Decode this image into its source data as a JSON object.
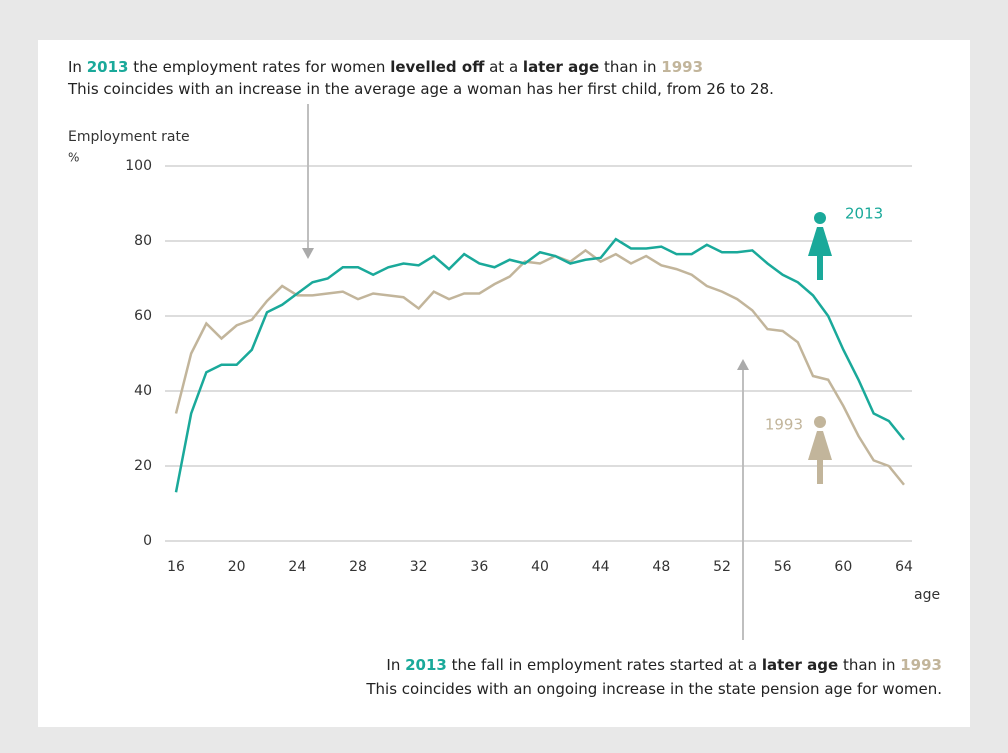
{
  "chart_data": {
    "type": "line",
    "annotations": [
      [
        {
          "text": "In "
        },
        {
          "text": "2013",
          "style": "series0"
        },
        {
          "text": " the employment rates for women "
        },
        {
          "text": "levelled off",
          "style": "bold"
        },
        {
          "text": " at a "
        },
        {
          "text": "later age",
          "style": "bold"
        },
        {
          "text": " than in "
        },
        {
          "text": "1993",
          "style": "series1"
        }
      ],
      [
        {
          "text": "This coincides with an increase in the average age a woman has her first child, from 26 to 28."
        }
      ],
      [
        {
          "text": "In "
        },
        {
          "text": "2013",
          "style": "series0"
        },
        {
          "text": " the fall in employment rates started at a "
        },
        {
          "text": "later age",
          "style": "bold"
        },
        {
          "text": " than in "
        },
        {
          "text": "1993",
          "style": "series1"
        }
      ],
      [
        {
          "text": "This coincides with an ongoing increase in the state pension age for women."
        }
      ]
    ],
    "y_label": "Employment rate",
    "y_unit": "%",
    "x_label": "age",
    "x": [
      16,
      17,
      18,
      19,
      20,
      21,
      22,
      23,
      24,
      25,
      26,
      27,
      28,
      29,
      30,
      31,
      32,
      33,
      34,
      35,
      36,
      37,
      38,
      39,
      40,
      41,
      42,
      43,
      44,
      45,
      46,
      47,
      48,
      49,
      50,
      51,
      52,
      53,
      54,
      55,
      56,
      57,
      58,
      59,
      60,
      61,
      62,
      63,
      64
    ],
    "series": [
      {
        "name": "2013",
        "color": "#1aa99a",
        "values": [
          13,
          34,
          45,
          47,
          47,
          51,
          61,
          63,
          66,
          69,
          70,
          73,
          73,
          71,
          73,
          74,
          73.5,
          76,
          72.5,
          76.5,
          74,
          73,
          75,
          74,
          77,
          76,
          74,
          75,
          75.5,
          80.5,
          78,
          78,
          78.5,
          76.5,
          76.5,
          79,
          77,
          77,
          77.5,
          74,
          71,
          69,
          65.5,
          60,
          51,
          43,
          34,
          32,
          27
        ]
      },
      {
        "name": "1993",
        "color": "#c2b59b",
        "values": [
          34,
          50,
          58,
          54,
          57.5,
          59,
          64,
          68,
          65.5,
          65.5,
          66,
          66.5,
          64.5,
          66,
          65.5,
          65,
          62,
          66.5,
          64.5,
          66,
          66,
          68.5,
          70.5,
          74.5,
          74,
          76,
          74.5,
          77.5,
          74.5,
          76.5,
          74,
          76,
          73.5,
          72.5,
          71,
          68,
          66.5,
          64.5,
          61.5,
          56.5,
          56,
          53,
          44,
          43,
          36,
          28,
          21.5,
          20,
          15
        ]
      }
    ],
    "xlim": [
      16,
      64
    ],
    "xticks": [
      16,
      20,
      24,
      28,
      32,
      36,
      40,
      44,
      48,
      52,
      56,
      60,
      64
    ],
    "ylim": [
      0,
      100
    ],
    "yticks": [
      0,
      20,
      40,
      60,
      80,
      100
    ],
    "grid": true
  }
}
